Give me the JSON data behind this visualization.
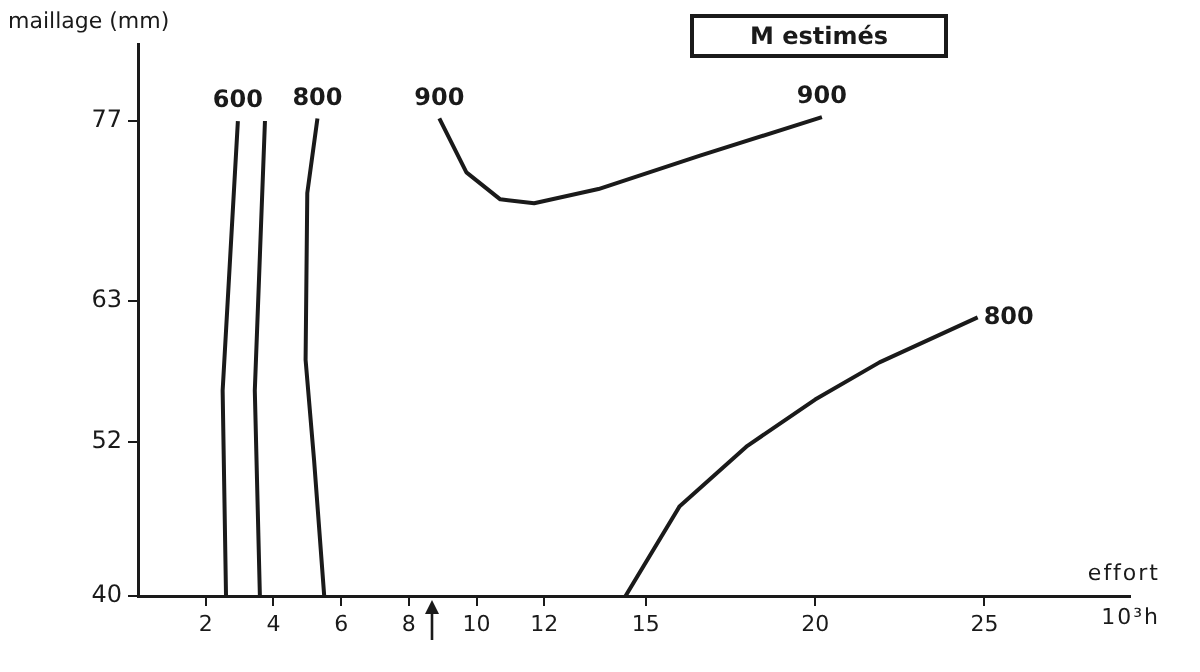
{
  "chart_data": {
    "type": "line",
    "title": "M estimés",
    "xlabel": "effort\n10³h",
    "ylabel": "maillage (mm)",
    "xlim": [
      0,
      29.3
    ],
    "ylim": [
      40,
      83
    ],
    "xticks": [
      2,
      4,
      6,
      8,
      10,
      12,
      15,
      20,
      25
    ],
    "yticks": [
      40,
      52,
      63,
      77
    ],
    "marker": "none",
    "legend": false,
    "grid": false,
    "series": [
      {
        "color": "#1a1a1a",
        "x": [
          2.6,
          2.5,
          2.95
        ],
        "values": [
          40,
          56,
          77
        ]
      },
      {
        "color": "#1a1a1a",
        "x": [
          3.6,
          3.45,
          3.75
        ],
        "values": [
          40,
          56,
          77
        ]
      },
      {
        "color": "#1a1a1a",
        "x": [
          5.5,
          5.2,
          4.95,
          5.0,
          5.3
        ],
        "values": [
          40,
          50.6,
          58.4,
          71.4,
          77.2
        ]
      },
      {
        "color": "#1a1a1a",
        "x": [
          8.9,
          9.7,
          10.7,
          11.7,
          13.6,
          16.6,
          20.2
        ],
        "values": [
          77.2,
          73.0,
          70.9,
          70.6,
          71.7,
          74.3,
          77.3
        ]
      },
      {
        "color": "#1a1a1a",
        "x": [
          14.4,
          16.0,
          18.0,
          20.0,
          21.9,
          24.8
        ],
        "values": [
          40,
          47.0,
          51.7,
          55.3,
          58.2,
          61.7
        ]
      }
    ],
    "annotations": [
      {
        "text": "600",
        "x": 2.95,
        "y": 77
      },
      {
        "text": "800",
        "x": 5.3,
        "y": 77.2
      },
      {
        "text": "900",
        "x": 8.9,
        "y": 77.2
      },
      {
        "text": "900",
        "x": 20.2,
        "y": 77.3
      },
      {
        "text": "800",
        "x": 24.8,
        "y": 61.7
      }
    ]
  }
}
